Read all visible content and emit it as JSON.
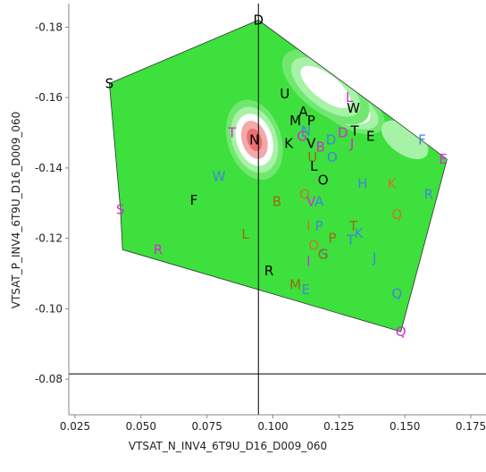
{
  "chart_data": {
    "type": "scatter",
    "xlabel": "VTSAT_N_INV4_6T9U_D16_D009_060",
    "ylabel": "VTSAT_P_INV4_6T9U_D16_D009_060",
    "xlim": [
      0.025,
      0.175
    ],
    "ylim": [
      -0.0775,
      -0.1895
    ],
    "x_ticks": [
      "0.025",
      "0.050",
      "0.075",
      "0.100",
      "0.125",
      "0.150",
      "0.175"
    ],
    "y_ticks": [
      "-0.18",
      "-0.16",
      "-0.14",
      "-0.12",
      "-0.10",
      "-0.08"
    ],
    "reference_lines": {
      "x": 0.0945,
      "y": -0.0815
    },
    "hull": [
      [
        0.0945,
        -0.182
      ],
      [
        0.1445,
        -0.1545
      ],
      [
        0.166,
        -0.1425
      ],
      [
        0.1485,
        -0.0935
      ],
      [
        0.043,
        -0.1168
      ],
      [
        0.0422,
        -0.1282
      ],
      [
        0.038,
        -0.164
      ]
    ],
    "contour": {
      "base_color": "#3de03d",
      "ring_colors": [
        "#70e870",
        "#a6f2a6",
        "#ffffff",
        "#f4a8a8",
        "#ec7070"
      ]
    },
    "series_colors": {
      "black": "#000000",
      "magenta": "#d62ad6",
      "blue": "#3f88d4",
      "orange": "#c8782a",
      "olive": "#9a6a10"
    },
    "points": [
      {
        "label": "D",
        "x": 0.0945,
        "y": -0.182,
        "color": "black"
      },
      {
        "label": "S",
        "x": 0.038,
        "y": -0.164,
        "color": "black"
      },
      {
        "label": "U",
        "x": 0.1045,
        "y": -0.161,
        "color": "black"
      },
      {
        "label": "L",
        "x": 0.129,
        "y": -0.16,
        "color": "magenta"
      },
      {
        "label": "W",
        "x": 0.1305,
        "y": -0.157,
        "color": "black"
      },
      {
        "label": "A",
        "x": 0.1115,
        "y": -0.156,
        "color": "black"
      },
      {
        "label": "M",
        "x": 0.1085,
        "y": -0.1535,
        "color": "black"
      },
      {
        "label": "P",
        "x": 0.1145,
        "y": -0.1535,
        "color": "black"
      },
      {
        "label": "N",
        "x": 0.1125,
        "y": -0.1505,
        "color": "blue"
      },
      {
        "label": "D",
        "x": 0.1265,
        "y": -0.15,
        "color": "magenta"
      },
      {
        "label": "T",
        "x": 0.131,
        "y": -0.1505,
        "color": "black"
      },
      {
        "label": "G",
        "x": 0.111,
        "y": -0.149,
        "color": "magenta"
      },
      {
        "label": "T",
        "x": 0.0845,
        "y": -0.15,
        "color": "magenta"
      },
      {
        "label": "N",
        "x": 0.093,
        "y": -0.148,
        "color": "black"
      },
      {
        "label": "K",
        "x": 0.106,
        "y": -0.147,
        "color": "black"
      },
      {
        "label": "V",
        "x": 0.1145,
        "y": -0.147,
        "color": "black"
      },
      {
        "label": "B",
        "x": 0.118,
        "y": -0.146,
        "color": "magenta"
      },
      {
        "label": "D",
        "x": 0.122,
        "y": -0.148,
        "color": "blue"
      },
      {
        "label": "J",
        "x": 0.13,
        "y": -0.147,
        "color": "magenta"
      },
      {
        "label": "E",
        "x": 0.137,
        "y": -0.149,
        "color": "black"
      },
      {
        "label": "F",
        "x": 0.1565,
        "y": -0.148,
        "color": "blue"
      },
      {
        "label": "U",
        "x": 0.115,
        "y": -0.143,
        "color": "olive"
      },
      {
        "label": "O",
        "x": 0.1225,
        "y": -0.143,
        "color": "blue"
      },
      {
        "label": "E",
        "x": 0.1645,
        "y": -0.1425,
        "color": "magenta"
      },
      {
        "label": "L",
        "x": 0.1155,
        "y": -0.1405,
        "color": "black"
      },
      {
        "label": "O",
        "x": 0.119,
        "y": -0.1365,
        "color": "black"
      },
      {
        "label": "W",
        "x": 0.0795,
        "y": -0.1375,
        "color": "blue"
      },
      {
        "label": "H",
        "x": 0.134,
        "y": -0.1355,
        "color": "blue"
      },
      {
        "label": "K",
        "x": 0.145,
        "y": -0.1355,
        "color": "orange"
      },
      {
        "label": "R",
        "x": 0.159,
        "y": -0.1325,
        "color": "blue"
      },
      {
        "label": "F",
        "x": 0.07,
        "y": -0.1308,
        "color": "black"
      },
      {
        "label": "O",
        "x": 0.112,
        "y": -0.1325,
        "color": "orange"
      },
      {
        "label": "V",
        "x": 0.1145,
        "y": -0.1305,
        "color": "magenta"
      },
      {
        "label": "B",
        "x": 0.1015,
        "y": -0.1305,
        "color": "olive"
      },
      {
        "label": "A",
        "x": 0.1175,
        "y": -0.1305,
        "color": "blue"
      },
      {
        "label": "S",
        "x": 0.0422,
        "y": -0.1282,
        "color": "magenta"
      },
      {
        "label": "Q",
        "x": 0.147,
        "y": -0.1268,
        "color": "orange"
      },
      {
        "label": "I",
        "x": 0.1135,
        "y": -0.1235,
        "color": "orange"
      },
      {
        "label": "P",
        "x": 0.1175,
        "y": -0.1235,
        "color": "blue"
      },
      {
        "label": "T",
        "x": 0.1305,
        "y": -0.1235,
        "color": "olive"
      },
      {
        "label": "K",
        "x": 0.1325,
        "y": -0.1215,
        "color": "blue"
      },
      {
        "label": "L",
        "x": 0.0895,
        "y": -0.1212,
        "color": "olive"
      },
      {
        "label": "P",
        "x": 0.1225,
        "y": -0.12,
        "color": "olive"
      },
      {
        "label": "T",
        "x": 0.1295,
        "y": -0.1195,
        "color": "blue"
      },
      {
        "label": "O",
        "x": 0.1155,
        "y": -0.118,
        "color": "orange"
      },
      {
        "label": "R",
        "x": 0.0565,
        "y": -0.1168,
        "color": "magenta"
      },
      {
        "label": "S",
        "x": 0.1195,
        "y": -0.1155,
        "color": "blue"
      },
      {
        "label": "G",
        "x": 0.119,
        "y": -0.1155,
        "color": "olive"
      },
      {
        "label": "J",
        "x": 0.1385,
        "y": -0.1145,
        "color": "blue"
      },
      {
        "label": "I",
        "x": 0.1135,
        "y": -0.1135,
        "color": "magenta"
      },
      {
        "label": "R",
        "x": 0.0985,
        "y": -0.1108,
        "color": "black"
      },
      {
        "label": "M",
        "x": 0.1085,
        "y": -0.1068,
        "color": "olive"
      },
      {
        "label": "E",
        "x": 0.1125,
        "y": -0.1055,
        "color": "blue"
      },
      {
        "label": "Q",
        "x": 0.147,
        "y": -0.1043,
        "color": "blue"
      },
      {
        "label": "Q",
        "x": 0.1485,
        "y": -0.0935,
        "color": "magenta"
      }
    ]
  }
}
